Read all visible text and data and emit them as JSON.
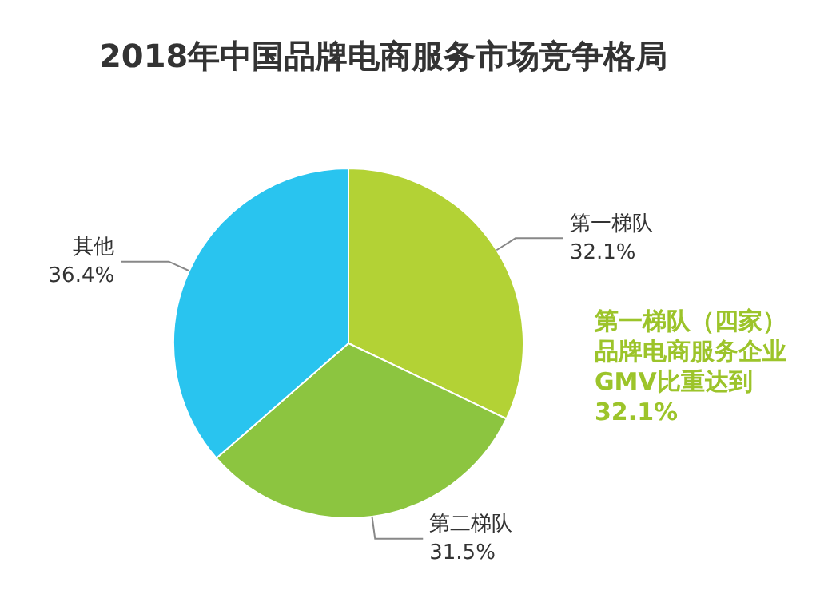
{
  "chart_data": {
    "type": "pie",
    "title": "2018年中国品牌电商服务市场竞争格局",
    "categories": [
      "第一梯队",
      "第二梯队",
      "其他"
    ],
    "values": [
      32.1,
      31.5,
      36.4
    ],
    "value_labels": [
      "32.1%",
      "31.5%",
      "36.4%"
    ],
    "colors": [
      "#b3d235",
      "#8cc540",
      "#29c4ef"
    ],
    "annotations": [
      "第一梯队（四家）品牌电商服务企业GMV比重达到32.1%"
    ],
    "legend": false
  }
}
